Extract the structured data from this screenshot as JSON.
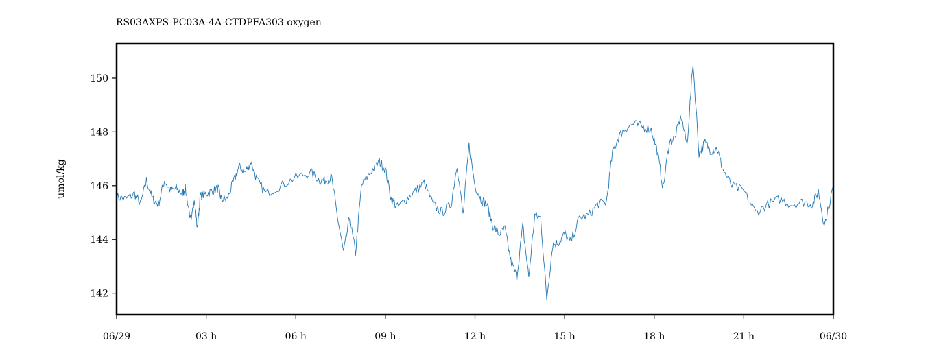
{
  "chart_data": {
    "type": "line",
    "title": "RS03AXPS-PC03A-4A-CTDPFA303 oxygen",
    "xlabel": "",
    "ylabel": "umol/kg",
    "xlim": [
      0,
      24
    ],
    "ylim": [
      141.2,
      151.3
    ],
    "grid": false,
    "legend": "none",
    "x_ticks": [
      {
        "value": 0,
        "label": "06/29"
      },
      {
        "value": 3,
        "label": "03 h"
      },
      {
        "value": 6,
        "label": "06 h"
      },
      {
        "value": 9,
        "label": "09 h"
      },
      {
        "value": 12,
        "label": "12 h"
      },
      {
        "value": 15,
        "label": "15 h"
      },
      {
        "value": 18,
        "label": "18 h"
      },
      {
        "value": 21,
        "label": "21 h"
      },
      {
        "value": 24,
        "label": "06/30"
      }
    ],
    "y_ticks": [
      {
        "value": 142,
        "label": "142"
      },
      {
        "value": 144,
        "label": "144"
      },
      {
        "value": 146,
        "label": "146"
      },
      {
        "value": 148,
        "label": "148"
      },
      {
        "value": 150,
        "label": "150"
      }
    ],
    "series": [
      {
        "color": "#1f77b4",
        "x": [
          0,
          0.3,
          0.6,
          0.8,
          1.0,
          1.2,
          1.4,
          1.6,
          1.8,
          2.0,
          2.2,
          2.3,
          2.5,
          2.6,
          2.7,
          2.8,
          3.0,
          3.2,
          3.4,
          3.5,
          3.7,
          3.9,
          4.1,
          4.3,
          4.5,
          4.7,
          5.0,
          5.5,
          6.0,
          6.5,
          6.8,
          7.0,
          7.2,
          7.4,
          7.6,
          7.8,
          8.0,
          8.2,
          8.5,
          8.8,
          9.0,
          9.2,
          9.4,
          9.7,
          10.0,
          10.3,
          10.6,
          10.9,
          11.2,
          11.4,
          11.6,
          11.8,
          12.0,
          12.2,
          12.4,
          12.6,
          12.8,
          13.0,
          13.2,
          13.4,
          13.6,
          13.8,
          14.0,
          14.2,
          14.4,
          14.6,
          14.8,
          15.0,
          15.2,
          15.5,
          15.8,
          16.1,
          16.4,
          16.6,
          16.8,
          17.0,
          17.3,
          17.6,
          17.9,
          18.1,
          18.3,
          18.5,
          18.7,
          18.9,
          19.1,
          19.3,
          19.5,
          19.7,
          19.9,
          20.1,
          20.3,
          20.6,
          21.0,
          21.4,
          21.8,
          22.2,
          22.6,
          23.0,
          23.3,
          23.5,
          23.7,
          24.0
        ],
        "y": [
          145.6,
          145.5,
          145.7,
          145.3,
          146.2,
          145.5,
          145.3,
          146.2,
          145.8,
          145.9,
          145.7,
          145.9,
          144.6,
          145.6,
          144.4,
          145.6,
          145.7,
          145.8,
          145.9,
          145.5,
          145.5,
          146.1,
          146.7,
          146.5,
          146.9,
          146.2,
          145.7,
          146.0,
          146.3,
          146.5,
          146.2,
          146.2,
          146.3,
          144.8,
          143.5,
          144.8,
          143.5,
          146.0,
          146.5,
          146.9,
          146.6,
          145.5,
          145.2,
          145.5,
          145.8,
          146.1,
          145.3,
          145.0,
          145.3,
          146.8,
          144.9,
          147.5,
          146.0,
          145.5,
          145.3,
          144.5,
          144.2,
          144.4,
          143.2,
          142.6,
          144.5,
          142.6,
          144.9,
          144.8,
          141.8,
          143.8,
          143.9,
          144.2,
          143.9,
          144.8,
          144.9,
          145.3,
          145.4,
          147.2,
          147.8,
          148.1,
          148.3,
          148.2,
          148.1,
          147.3,
          145.9,
          147.6,
          147.8,
          148.6,
          147.5,
          150.6,
          147.2,
          147.6,
          147.3,
          147.4,
          146.6,
          146.0,
          145.8,
          145.0,
          145.3,
          145.5,
          145.3,
          145.4,
          145.3,
          145.8,
          144.5,
          146.0
        ]
      }
    ]
  }
}
